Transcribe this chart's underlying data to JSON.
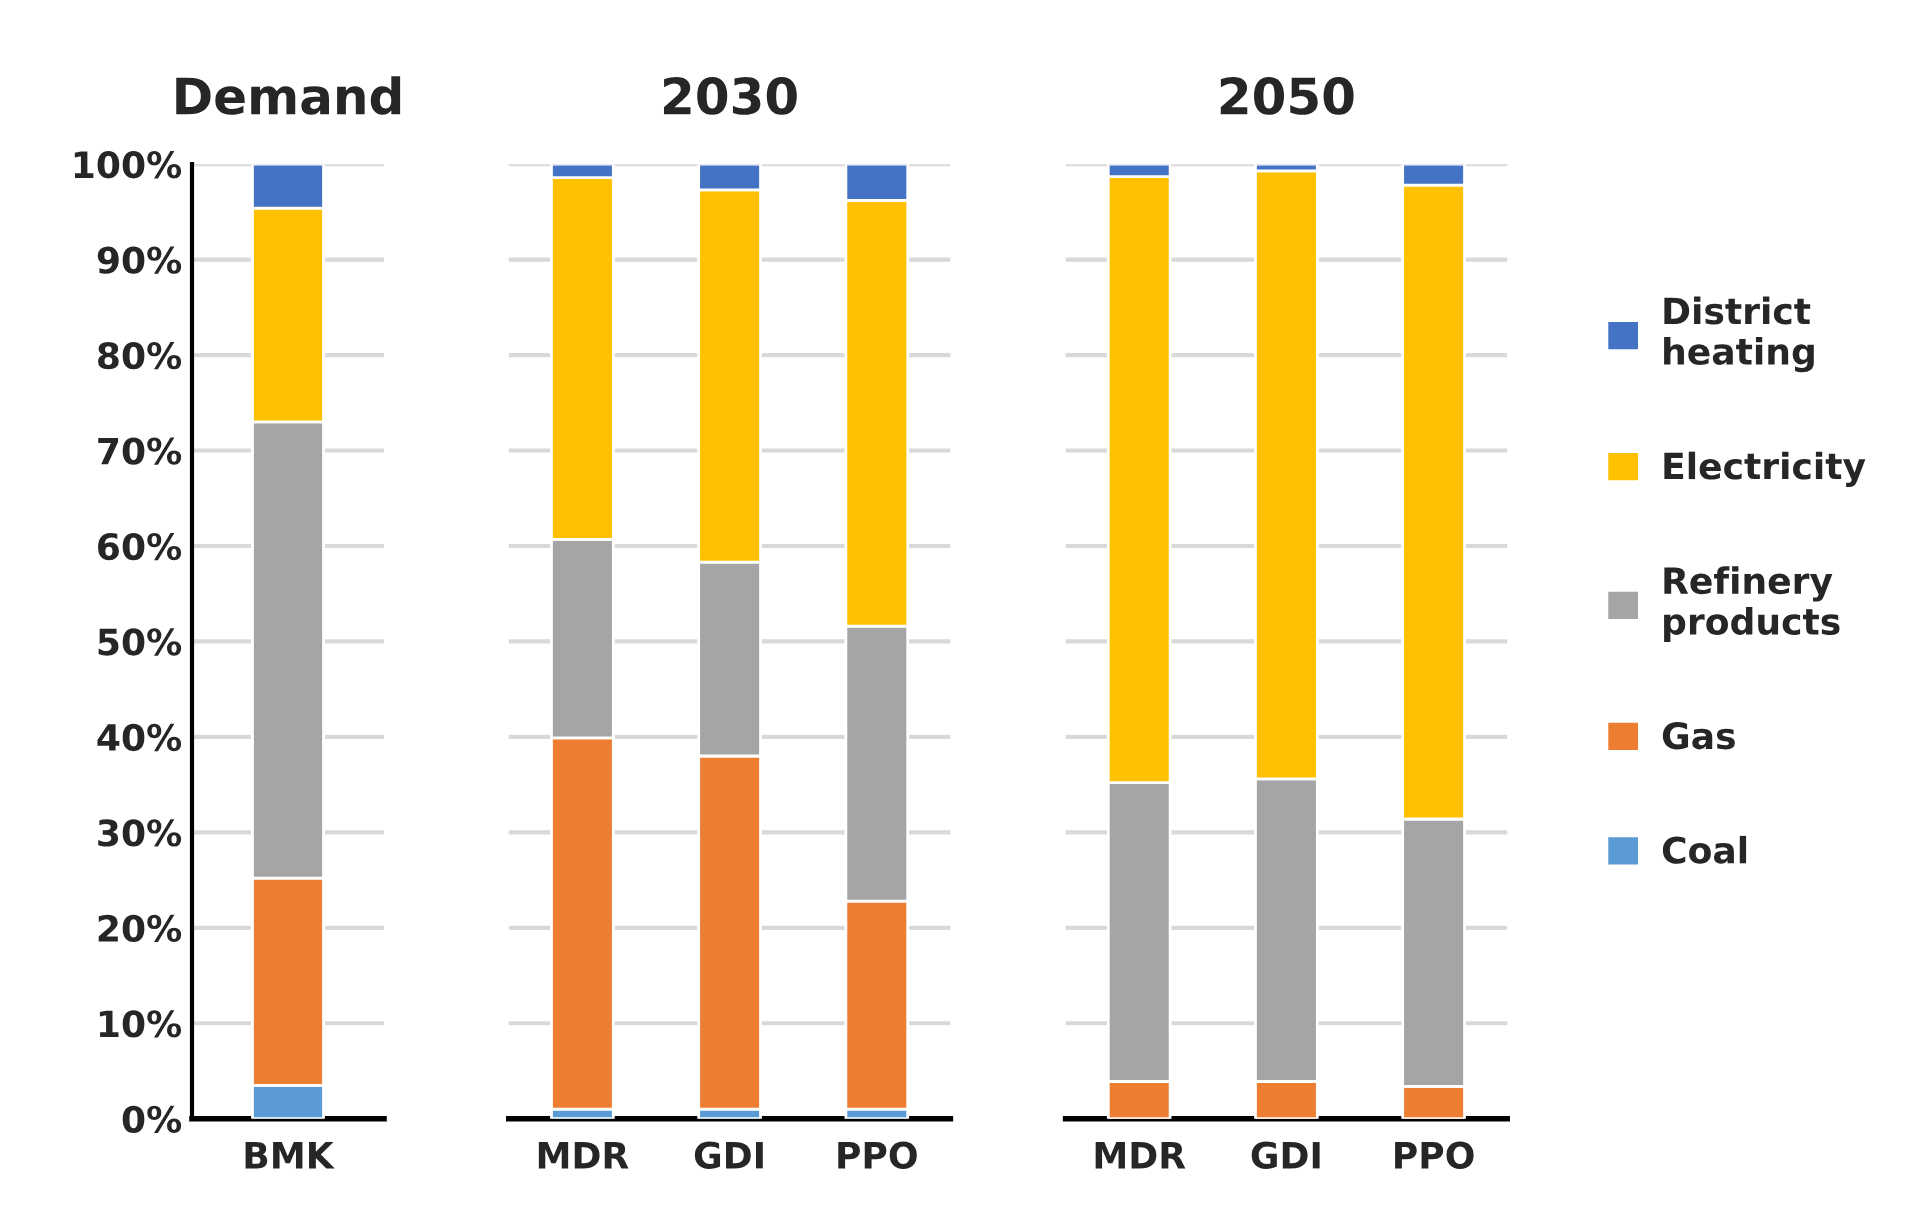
{
  "chart_data": [
    {
      "type": "bar",
      "title": "Demand",
      "stacked": true,
      "categories": [
        "BMK"
      ],
      "ylim": [
        0,
        100
      ],
      "yticks": [
        {
          "value": 0,
          "label": "0%"
        },
        {
          "value": 10,
          "label": "10%"
        },
        {
          "value": 20,
          "label": "20%"
        },
        {
          "value": 30,
          "label": "30%"
        },
        {
          "value": 40,
          "label": "40%"
        },
        {
          "value": 50,
          "label": "50%"
        },
        {
          "value": 60,
          "label": "60%"
        },
        {
          "value": 70,
          "label": "70%"
        },
        {
          "value": 80,
          "label": "80%"
        },
        {
          "value": 90,
          "label": "90%"
        },
        {
          "value": 100,
          "label": "100%"
        }
      ],
      "grid": "y",
      "legend": "right",
      "series": [
        {
          "name": "Coal",
          "color": "#5b9bd5",
          "values": [
            3.5
          ]
        },
        {
          "name": "Gas",
          "color": "#ed7d31",
          "values": [
            21.7
          ]
        },
        {
          "name": "Refinery\nproducts",
          "color": "#a5a5a5",
          "values": [
            47.8
          ]
        },
        {
          "name": "Electricity",
          "color": "#ffc000",
          "values": [
            22.4
          ]
        },
        {
          "name": "District\nheating",
          "color": "#4472c4",
          "values": [
            4.6
          ]
        }
      ]
    },
    {
      "type": "bar",
      "title": "2030",
      "stacked": true,
      "categories": [
        "MDR",
        "GDI",
        "PPO"
      ],
      "ylim": [
        0,
        100
      ],
      "tick_labels": "x",
      "grid": "y",
      "series": [
        {
          "color": "#5b9bd5",
          "values": [
            1.0,
            1.0,
            1.0
          ]
        },
        {
          "color": "#ed7d31",
          "values": [
            38.9,
            37.0,
            21.8
          ]
        },
        {
          "color": "#a5a5a5",
          "values": [
            20.8,
            20.3,
            28.8
          ]
        },
        {
          "color": "#ffc000",
          "values": [
            37.9,
            39.0,
            44.6
          ]
        },
        {
          "color": "#4472c4",
          "values": [
            1.4,
            2.7,
            3.8
          ]
        }
      ]
    },
    {
      "type": "bar",
      "title": "2050",
      "stacked": true,
      "categories": [
        "MDR",
        "GDI",
        "PPO"
      ],
      "ylim": [
        0,
        100
      ],
      "tick_labels": "x",
      "grid": "y",
      "series": [
        {
          "color": "#5b9bd5",
          "values": [
            0,
            0,
            0
          ]
        },
        {
          "color": "#ed7d31",
          "values": [
            3.9,
            3.9,
            3.4
          ]
        },
        {
          "color": "#a5a5a5",
          "values": [
            31.3,
            31.7,
            28.0
          ]
        },
        {
          "color": "#ffc000",
          "values": [
            63.5,
            63.7,
            66.4
          ]
        },
        {
          "color": "#4472c4",
          "values": [
            1.3,
            0.7,
            2.2
          ]
        }
      ]
    }
  ]
}
